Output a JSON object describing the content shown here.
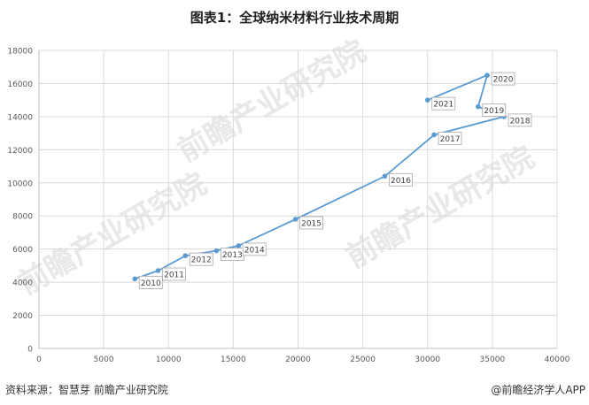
{
  "title": "图表1：全球纳米材料行业技术周期",
  "footer": {
    "source": "资料来源：智慧芽 前瞻产业研究院",
    "brand": "@前瞻经济学人APP"
  },
  "watermark": "前瞻产业研究院",
  "colors": {
    "line": "#5b9bd5",
    "grid": "#d9d9d9",
    "label_border": "#a6a6a6"
  },
  "chart_data": {
    "type": "scatter",
    "connected": true,
    "xlim": [
      0,
      40000
    ],
    "ylim": [
      0,
      18000
    ],
    "xticks": [
      0,
      5000,
      10000,
      15000,
      20000,
      25000,
      30000,
      35000,
      40000
    ],
    "yticks": [
      0,
      2000,
      4000,
      6000,
      8000,
      10000,
      12000,
      14000,
      16000,
      18000
    ],
    "grid": true,
    "points": [
      {
        "label": "2010",
        "x": 7400,
        "y": 4200
      },
      {
        "label": "2011",
        "x": 9200,
        "y": 4700
      },
      {
        "label": "2012",
        "x": 11300,
        "y": 5600
      },
      {
        "label": "2013",
        "x": 13700,
        "y": 5900
      },
      {
        "label": "2014",
        "x": 15400,
        "y": 6200
      },
      {
        "label": "2015",
        "x": 19800,
        "y": 7800
      },
      {
        "label": "2016",
        "x": 26700,
        "y": 10400
      },
      {
        "label": "2017",
        "x": 30500,
        "y": 12900
      },
      {
        "label": "2018",
        "x": 35900,
        "y": 14000
      },
      {
        "label": "2019",
        "x": 33900,
        "y": 14600
      },
      {
        "label": "2020",
        "x": 34600,
        "y": 16500
      },
      {
        "label": "2021",
        "x": 30000,
        "y": 15000
      }
    ]
  }
}
